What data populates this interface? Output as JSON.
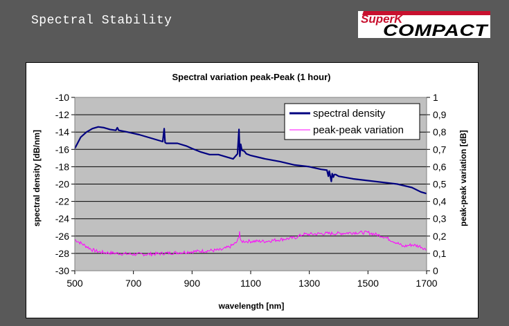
{
  "slide": {
    "title": "Spectral Stability",
    "logo_top": "SuperK",
    "logo_bottom": "COMPACT"
  },
  "colors": {
    "background": "#595959",
    "plot_area": "#c0c0c0",
    "spectral_line": "#000080",
    "variation_line": "#ff00ff",
    "logo_red": "#c8102e"
  },
  "chart_data": {
    "type": "line",
    "title": "Spectral variation peak-Peak (1 hour)",
    "xlabel": "wavelength [nm]",
    "ylabel": "spectral density [dB/nm]",
    "y2label": "peak-peak variation [dB]",
    "xlim": [
      500,
      1700
    ],
    "ylim": [
      -30,
      -10
    ],
    "y2lim": [
      0,
      1
    ],
    "xticks": [
      500,
      700,
      900,
      1100,
      1300,
      1500,
      1700
    ],
    "xtick_labels": [
      "500",
      "700",
      "900",
      "1100",
      "1300",
      "1500",
      "1700"
    ],
    "yticks": [
      -10,
      -12,
      -14,
      -16,
      -18,
      -20,
      -22,
      -24,
      -26,
      -28,
      -30
    ],
    "ytick_labels": [
      "-10",
      "-12",
      "-14",
      "-16",
      "-18",
      "-20",
      "-22",
      "-24",
      "-26",
      "-28",
      "-30"
    ],
    "y2ticks": [
      1,
      0.9,
      0.8,
      0.7,
      0.6,
      0.5,
      0.4,
      0.3,
      0.2,
      0.1,
      0
    ],
    "y2tick_labels": [
      "1",
      "0,9",
      "0,8",
      "0,7",
      "0,6",
      "0,5",
      "0,4",
      "0,3",
      "0,2",
      "0,1",
      "0"
    ],
    "grid": "horizontal",
    "legend": "top-right",
    "series": [
      {
        "name": "spectral density",
        "axis": "left",
        "x": [
          500,
          520,
          540,
          560,
          580,
          600,
          620,
          640,
          645,
          650,
          680,
          720,
          760,
          800,
          805,
          808,
          812,
          850,
          880,
          900,
          930,
          960,
          990,
          1020,
          1040,
          1055,
          1060,
          1063,
          1066,
          1070,
          1078,
          1085,
          1100,
          1150,
          1200,
          1250,
          1300,
          1340,
          1360,
          1365,
          1368,
          1375,
          1378,
          1382,
          1385,
          1390,
          1400,
          1450,
          1500,
          1550,
          1600,
          1650,
          1680,
          1700
        ],
        "values": [
          -15.9,
          -14.6,
          -14.0,
          -13.6,
          -13.4,
          -13.5,
          -13.7,
          -13.8,
          -13.5,
          -13.8,
          -14.0,
          -14.3,
          -14.7,
          -15.1,
          -13.6,
          -15.2,
          -15.3,
          -15.3,
          -15.6,
          -15.9,
          -16.3,
          -16.6,
          -16.6,
          -16.9,
          -17.1,
          -16.5,
          -13.7,
          -16.8,
          -15.4,
          -16.1,
          -16.2,
          -16.5,
          -16.7,
          -17.1,
          -17.4,
          -17.8,
          -18.0,
          -18.3,
          -18.4,
          -19.1,
          -18.5,
          -19.7,
          -18.8,
          -19.2,
          -18.9,
          -18.9,
          -19.1,
          -19.4,
          -19.6,
          -19.8,
          -20.0,
          -20.4,
          -20.9,
          -21.1
        ]
      },
      {
        "name": "peak-peak variation",
        "axis": "right",
        "x": [
          500,
          520,
          540,
          560,
          580,
          600,
          650,
          700,
          750,
          800,
          850,
          900,
          950,
          1000,
          1030,
          1050,
          1060,
          1062,
          1065,
          1075,
          1100,
          1150,
          1200,
          1250,
          1280,
          1300,
          1350,
          1400,
          1450,
          1470,
          1500,
          1550,
          1600,
          1620,
          1650,
          1680,
          1700
        ],
        "values": [
          0.18,
          0.16,
          0.14,
          0.12,
          0.11,
          0.105,
          0.1,
          0.095,
          0.095,
          0.1,
          0.105,
          0.11,
          0.115,
          0.12,
          0.14,
          0.16,
          0.19,
          0.23,
          0.17,
          0.17,
          0.17,
          0.17,
          0.18,
          0.19,
          0.21,
          0.21,
          0.215,
          0.215,
          0.22,
          0.22,
          0.22,
          0.2,
          0.16,
          0.14,
          0.15,
          0.14,
          0.12
        ]
      }
    ]
  }
}
